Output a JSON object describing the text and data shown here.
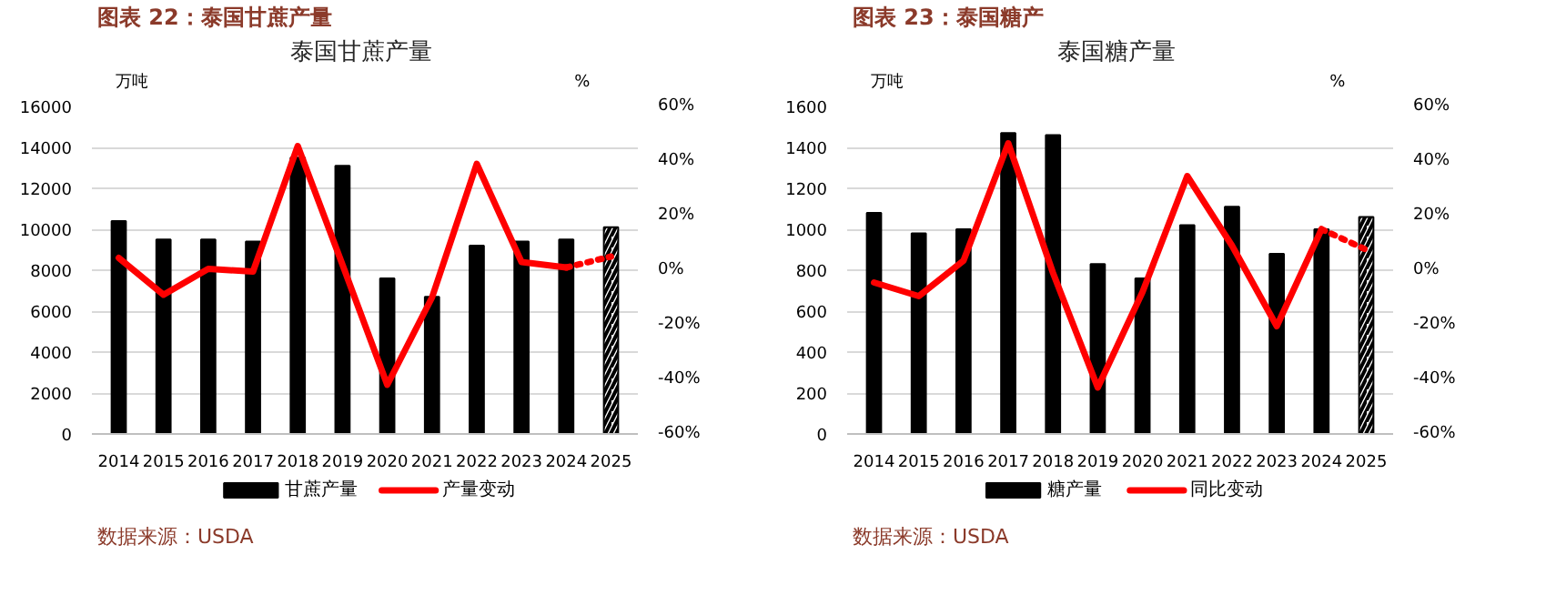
{
  "chart_data": [
    {
      "type": "bar",
      "title": "泰国甘蔗产量",
      "ylabel": "万吨",
      "y2label": "%",
      "annotations": [
        "图表 22：泰国甘蔗产量",
        "数据来源：USDA"
      ],
      "categories": [
        "2014",
        "2015",
        "2016",
        "2017",
        "2018",
        "2019",
        "2020",
        "2021",
        "2022",
        "2023",
        "2024",
        "2025"
      ],
      "series": [
        {
          "name": "甘蔗产量",
          "color": "#000000",
          "values": [
            10400,
            9500,
            9500,
            9400,
            13500,
            13100,
            7600,
            6700,
            9200,
            9400,
            9500,
            null
          ]
        },
        {
          "color": "#000000",
          "values": [
            null,
            null,
            null,
            null,
            null,
            null,
            null,
            null,
            null,
            null,
            null,
            10100
          ]
        },
        {
          "name": "产量变动",
          "type": "line",
          "axis": "y2",
          "color": "#ff0000",
          "line_style": "solid",
          "values": [
            4.5,
            -9,
            0.5,
            -0.5,
            45.5,
            2,
            -42,
            -10,
            39,
            3,
            1,
            null
          ]
        },
        {
          "type": "line",
          "axis": "y2",
          "color": "#ff0000",
          "line_style": "dotted",
          "values": [
            null,
            null,
            null,
            null,
            null,
            null,
            null,
            null,
            null,
            null,
            1,
            5
          ]
        }
      ],
      "ylim": [
        0,
        16000
      ],
      "yticks": [
        0,
        2000,
        4000,
        6000,
        8000,
        10000,
        12000,
        14000,
        16000
      ],
      "y2lim": [
        -60,
        60
      ],
      "y2ticks": [
        {
          "value": -60,
          "label": "-60%"
        },
        {
          "value": -40,
          "label": "-40%"
        },
        {
          "value": -20,
          "label": "-20%"
        },
        {
          "value": 0,
          "label": "0%"
        },
        {
          "value": 20,
          "label": "20%"
        },
        {
          "value": 40,
          "label": "40%"
        },
        {
          "value": 60,
          "label": "60%"
        }
      ],
      "grid": "y",
      "legend": "bottom"
    },
    {
      "type": "bar",
      "title": "泰国糖产量",
      "ylabel": "万吨",
      "y2label": "%",
      "annotations": [
        "图表 23：泰国糖产",
        "数据来源：USDA"
      ],
      "categories": [
        "2014",
        "2015",
        "2016",
        "2017",
        "2018",
        "2019",
        "2020",
        "2021",
        "2022",
        "2023",
        "2024",
        "2025"
      ],
      "series": [
        {
          "name": "糖产量",
          "color": "#000000",
          "values": [
            1080,
            980,
            1000,
            1470,
            1460,
            830,
            760,
            1020,
            1110,
            880,
            1000,
            null
          ]
        },
        {
          "color": "#000000",
          "values": [
            null,
            null,
            null,
            null,
            null,
            null,
            null,
            null,
            null,
            null,
            null,
            1060
          ]
        },
        {
          "name": "同比变动",
          "type": "line",
          "axis": "y2",
          "color": "#ff0000",
          "line_style": "solid",
          "values": [
            -4.5,
            -9.5,
            3.5,
            46.5,
            -1,
            -43,
            -8,
            34.5,
            9,
            -20.5,
            15,
            null
          ]
        },
        {
          "type": "line",
          "axis": "y2",
          "color": "#ff0000",
          "line_style": "dotted",
          "values": [
            null,
            null,
            null,
            null,
            null,
            null,
            null,
            null,
            null,
            null,
            15,
            7.5
          ]
        }
      ],
      "ylim": [
        0,
        1600
      ],
      "yticks": [
        0,
        200,
        400,
        600,
        800,
        1000,
        1200,
        1400,
        1600
      ],
      "y2lim": [
        -60,
        60
      ],
      "y2ticks": [
        {
          "value": -60,
          "label": "-60%"
        },
        {
          "value": -40,
          "label": "-40%"
        },
        {
          "value": -20,
          "label": "-20%"
        },
        {
          "value": 0,
          "label": "0%"
        },
        {
          "value": 20,
          "label": "20%"
        },
        {
          "value": 40,
          "label": "40%"
        },
        {
          "value": 60,
          "label": "60%"
        }
      ],
      "grid": "y",
      "legend": "bottom"
    }
  ]
}
